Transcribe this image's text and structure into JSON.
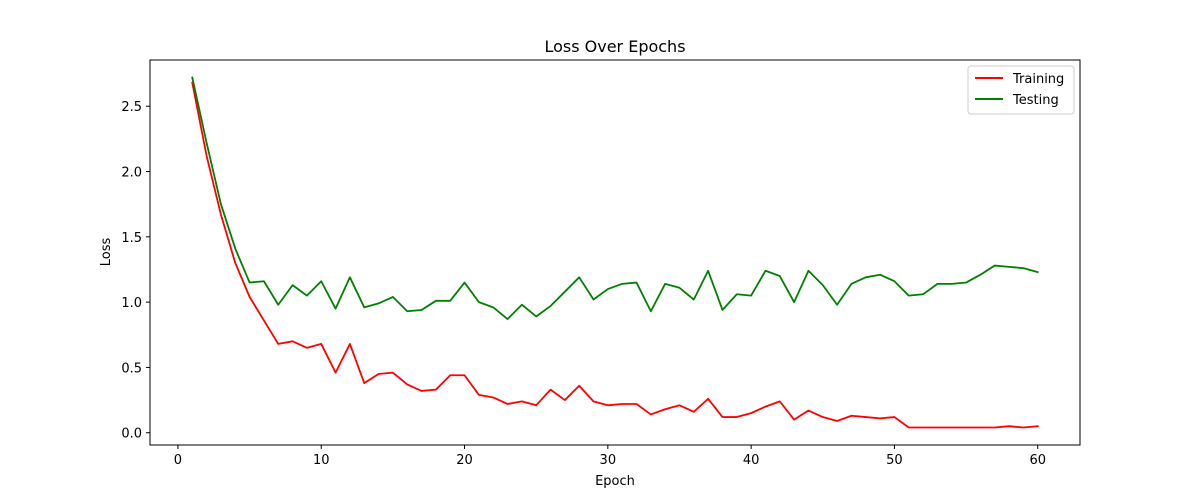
{
  "chart_data": {
    "type": "line",
    "title": "Loss Over Epochs",
    "xlabel": "Epoch",
    "ylabel": "Loss",
    "xlim": [
      -1.95,
      62.95
    ],
    "ylim": [
      -0.094,
      2.854
    ],
    "xticks": [
      0,
      10,
      20,
      30,
      40,
      50,
      60
    ],
    "xtick_labels": [
      "0",
      "10",
      "20",
      "30",
      "40",
      "50",
      "60"
    ],
    "yticks": [
      0.0,
      0.5,
      1.0,
      1.5,
      2.0,
      2.5
    ],
    "ytick_labels": [
      "0.0",
      "0.5",
      "1.0",
      "1.5",
      "2.0",
      "2.5"
    ],
    "grid": false,
    "legend_position": "top-right",
    "x": [
      1,
      2,
      3,
      4,
      5,
      6,
      7,
      8,
      9,
      10,
      11,
      12,
      13,
      14,
      15,
      16,
      17,
      18,
      19,
      20,
      21,
      22,
      23,
      24,
      25,
      26,
      27,
      28,
      29,
      30,
      31,
      32,
      33,
      34,
      35,
      36,
      37,
      38,
      39,
      40,
      41,
      42,
      43,
      44,
      45,
      46,
      47,
      48,
      49,
      50,
      51,
      52,
      53,
      54,
      55,
      56,
      57,
      58,
      59,
      60
    ],
    "series": [
      {
        "name": "Training",
        "color": "#ff0000",
        "values": [
          2.68,
          2.12,
          1.67,
          1.3,
          1.04,
          0.86,
          0.68,
          0.7,
          0.65,
          0.68,
          0.46,
          0.68,
          0.38,
          0.45,
          0.46,
          0.37,
          0.32,
          0.33,
          0.44,
          0.44,
          0.29,
          0.27,
          0.22,
          0.24,
          0.21,
          0.33,
          0.25,
          0.36,
          0.24,
          0.21,
          0.22,
          0.22,
          0.14,
          0.18,
          0.21,
          0.16,
          0.26,
          0.12,
          0.12,
          0.15,
          0.2,
          0.24,
          0.1,
          0.17,
          0.12,
          0.09,
          0.13,
          0.12,
          0.11,
          0.12,
          0.04,
          0.04,
          0.04,
          0.04,
          0.04,
          0.04,
          0.04,
          0.05,
          0.04,
          0.05
        ]
      },
      {
        "name": "Testing",
        "color": "#008000",
        "values": [
          2.72,
          2.22,
          1.75,
          1.41,
          1.15,
          1.16,
          0.98,
          1.13,
          1.05,
          1.16,
          0.95,
          1.19,
          0.96,
          0.99,
          1.04,
          0.93,
          0.94,
          1.01,
          1.01,
          1.15,
          1.0,
          0.96,
          0.87,
          0.98,
          0.89,
          0.97,
          1.08,
          1.19,
          1.02,
          1.1,
          1.14,
          1.15,
          0.93,
          1.14,
          1.11,
          1.02,
          1.24,
          0.94,
          1.06,
          1.05,
          1.24,
          1.2,
          1.0,
          1.24,
          1.13,
          0.98,
          1.14,
          1.19,
          1.21,
          1.16,
          1.05,
          1.06,
          1.14,
          1.14,
          1.15,
          1.21,
          1.28,
          1.27,
          1.26,
          1.23
        ]
      }
    ]
  }
}
